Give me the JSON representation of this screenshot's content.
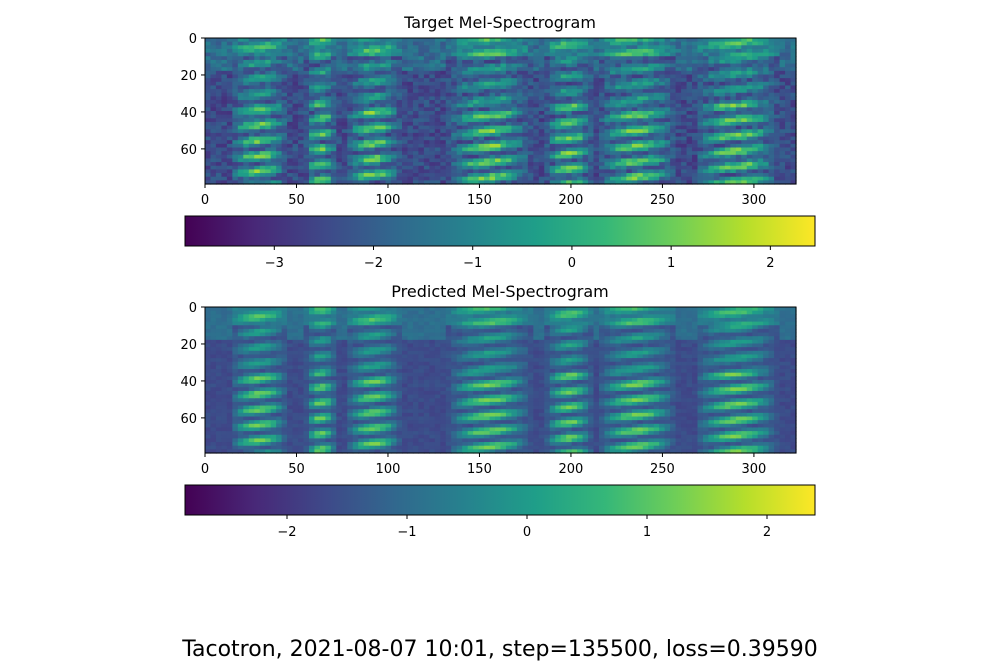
{
  "suptitle": "Tacotron, 2021-08-07 10:01, step=135500, loss=0.39590",
  "colors": {
    "viridis": [
      "#440154",
      "#482878",
      "#3e4989",
      "#31688e",
      "#26828e",
      "#1f9e89",
      "#35b779",
      "#6ece58",
      "#b5de2b",
      "#fde725"
    ]
  },
  "chart_data": [
    {
      "type": "heatmap",
      "title": "Target Mel-Spectrogram",
      "colormap": "viridis",
      "xlim": [
        0,
        323
      ],
      "ylim": [
        79,
        0
      ],
      "x_ticks": [
        0,
        50,
        100,
        150,
        200,
        250,
        300
      ],
      "y_ticks": [
        0,
        20,
        40,
        60
      ],
      "value_range": [
        -3.9,
        2.45
      ],
      "colorbar": {
        "orientation": "horizontal",
        "ticks": [
          -3,
          -2,
          -1,
          0,
          1,
          2
        ],
        "tick_labels": [
          "−3",
          "−2",
          "−1",
          "0",
          "1",
          "2"
        ]
      },
      "speech_segments": [
        [
          14,
          45
        ],
        [
          55,
          72
        ],
        [
          77,
          107
        ],
        [
          133,
          178
        ],
        [
          186,
          212
        ],
        [
          215,
          257
        ],
        [
          268,
          313
        ]
      ],
      "silence_gaps": [
        [
          0,
          12
        ],
        [
          110,
          131
        ],
        [
          258,
          266
        ]
      ]
    },
    {
      "type": "heatmap",
      "title": "Predicted Mel-Spectrogram",
      "colormap": "viridis",
      "xlim": [
        0,
        323
      ],
      "ylim": [
        79,
        0
      ],
      "x_ticks": [
        0,
        50,
        100,
        150,
        200,
        250,
        300
      ],
      "y_ticks": [
        0,
        20,
        40,
        60
      ],
      "value_range": [
        -2.85,
        2.4
      ],
      "colorbar": {
        "orientation": "horizontal",
        "ticks": [
          -2,
          -1,
          0,
          1,
          2
        ],
        "tick_labels": [
          "−2",
          "−1",
          "0",
          "1",
          "2"
        ]
      },
      "speech_segments": [
        [
          14,
          45
        ],
        [
          55,
          72
        ],
        [
          77,
          107
        ],
        [
          133,
          178
        ],
        [
          186,
          212
        ],
        [
          215,
          257
        ],
        [
          268,
          313
        ]
      ],
      "silence_gaps": [
        [
          0,
          12
        ],
        [
          110,
          131
        ],
        [
          258,
          266
        ]
      ]
    }
  ]
}
